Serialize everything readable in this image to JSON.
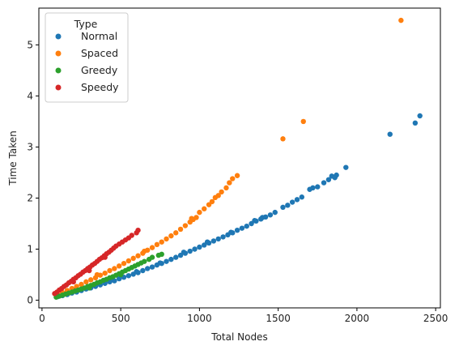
{
  "chart_data": {
    "type": "scatter",
    "title": "",
    "xlabel": "Total Nodes",
    "ylabel": "Time Taken",
    "xlim": [
      -20,
      2530
    ],
    "ylim": [
      -0.15,
      5.72
    ],
    "x_ticks": [
      0,
      500,
      1000,
      1500,
      2000,
      2500
    ],
    "y_ticks": [
      0,
      1,
      2,
      3,
      4,
      5
    ],
    "grid": false,
    "legend": {
      "title": "Type",
      "placement": "top-left"
    },
    "series": [
      {
        "name": "Normal",
        "color": "#1f77b4",
        "points": [
          [
            100,
            0.07
          ],
          [
            130,
            0.09
          ],
          [
            160,
            0.11
          ],
          [
            190,
            0.14
          ],
          [
            220,
            0.16
          ],
          [
            250,
            0.19
          ],
          [
            280,
            0.22
          ],
          [
            310,
            0.24
          ],
          [
            340,
            0.27
          ],
          [
            370,
            0.3
          ],
          [
            400,
            0.33
          ],
          [
            430,
            0.36
          ],
          [
            460,
            0.38
          ],
          [
            490,
            0.42
          ],
          [
            520,
            0.45
          ],
          [
            550,
            0.48
          ],
          [
            580,
            0.51
          ],
          [
            610,
            0.54
          ],
          [
            640,
            0.58
          ],
          [
            670,
            0.62
          ],
          [
            700,
            0.65
          ],
          [
            730,
            0.69
          ],
          [
            760,
            0.72
          ],
          [
            790,
            0.76
          ],
          [
            820,
            0.8
          ],
          [
            850,
            0.84
          ],
          [
            880,
            0.88
          ],
          [
            910,
            0.92
          ],
          [
            940,
            0.96
          ],
          [
            970,
            1.0
          ],
          [
            1000,
            1.04
          ],
          [
            1030,
            1.08
          ],
          [
            1060,
            1.12
          ],
          [
            1090,
            1.16
          ],
          [
            1120,
            1.2
          ],
          [
            1150,
            1.24
          ],
          [
            1180,
            1.28
          ],
          [
            1210,
            1.32
          ],
          [
            1240,
            1.37
          ],
          [
            1270,
            1.41
          ],
          [
            1300,
            1.45
          ],
          [
            1330,
            1.5
          ],
          [
            1360,
            1.55
          ],
          [
            1390,
            1.59
          ],
          [
            1420,
            1.63
          ],
          [
            1450,
            1.67
          ],
          [
            1480,
            1.72
          ],
          [
            1530,
            1.82
          ],
          [
            1560,
            1.86
          ],
          [
            1590,
            1.92
          ],
          [
            1620,
            1.97
          ],
          [
            1650,
            2.02
          ],
          [
            1700,
            2.17
          ],
          [
            1720,
            2.2
          ],
          [
            1750,
            2.22
          ],
          [
            1790,
            2.3
          ],
          [
            1820,
            2.36
          ],
          [
            1840,
            2.43
          ],
          [
            1860,
            2.4
          ],
          [
            1870,
            2.45
          ],
          [
            1930,
            2.6
          ],
          [
            2210,
            3.25
          ],
          [
            2370,
            3.47
          ],
          [
            2400,
            3.61
          ],
          [
            200,
            0.2
          ],
          [
            300,
            0.26
          ],
          [
            450,
            0.4
          ],
          [
            600,
            0.56
          ],
          [
            750,
            0.73
          ],
          [
            900,
            0.94
          ],
          [
            1050,
            1.14
          ],
          [
            1200,
            1.33
          ],
          [
            1350,
            1.56
          ],
          [
            1400,
            1.62
          ]
        ]
      },
      {
        "name": "Spaced",
        "color": "#ff7f0e",
        "points": [
          [
            100,
            0.11
          ],
          [
            130,
            0.15
          ],
          [
            160,
            0.19
          ],
          [
            190,
            0.23
          ],
          [
            220,
            0.27
          ],
          [
            250,
            0.31
          ],
          [
            280,
            0.36
          ],
          [
            310,
            0.4
          ],
          [
            340,
            0.44
          ],
          [
            370,
            0.49
          ],
          [
            400,
            0.53
          ],
          [
            430,
            0.58
          ],
          [
            460,
            0.62
          ],
          [
            490,
            0.67
          ],
          [
            520,
            0.72
          ],
          [
            550,
            0.77
          ],
          [
            580,
            0.82
          ],
          [
            610,
            0.87
          ],
          [
            640,
            0.92
          ],
          [
            670,
            0.98
          ],
          [
            700,
            1.03
          ],
          [
            730,
            1.09
          ],
          [
            760,
            1.14
          ],
          [
            790,
            1.2
          ],
          [
            820,
            1.26
          ],
          [
            850,
            1.32
          ],
          [
            880,
            1.39
          ],
          [
            910,
            1.46
          ],
          [
            940,
            1.53
          ],
          [
            960,
            1.58
          ],
          [
            980,
            1.62
          ],
          [
            1000,
            1.72
          ],
          [
            1030,
            1.79
          ],
          [
            1060,
            1.87
          ],
          [
            1080,
            1.93
          ],
          [
            1100,
            2.01
          ],
          [
            1120,
            2.05
          ],
          [
            1140,
            2.12
          ],
          [
            1170,
            2.2
          ],
          [
            1190,
            2.3
          ],
          [
            1210,
            2.38
          ],
          [
            1240,
            2.44
          ],
          [
            1530,
            3.16
          ],
          [
            1660,
            3.5
          ],
          [
            2280,
            5.48
          ],
          [
            350,
            0.5
          ],
          [
            650,
            0.96
          ],
          [
            950,
            1.6
          ]
        ]
      },
      {
        "name": "Greedy",
        "color": "#2ca02c",
        "points": [
          [
            90,
            0.06
          ],
          [
            110,
            0.08
          ],
          [
            130,
            0.1
          ],
          [
            150,
            0.12
          ],
          [
            170,
            0.14
          ],
          [
            190,
            0.16
          ],
          [
            210,
            0.18
          ],
          [
            230,
            0.2
          ],
          [
            250,
            0.22
          ],
          [
            270,
            0.24
          ],
          [
            290,
            0.27
          ],
          [
            310,
            0.29
          ],
          [
            330,
            0.31
          ],
          [
            350,
            0.34
          ],
          [
            370,
            0.36
          ],
          [
            390,
            0.39
          ],
          [
            410,
            0.41
          ],
          [
            430,
            0.44
          ],
          [
            450,
            0.46
          ],
          [
            470,
            0.49
          ],
          [
            490,
            0.52
          ],
          [
            510,
            0.55
          ],
          [
            530,
            0.58
          ],
          [
            550,
            0.61
          ],
          [
            570,
            0.64
          ],
          [
            590,
            0.67
          ],
          [
            610,
            0.7
          ],
          [
            630,
            0.73
          ],
          [
            650,
            0.76
          ],
          [
            680,
            0.8
          ],
          [
            700,
            0.84
          ],
          [
            740,
            0.88
          ],
          [
            760,
            0.9
          ],
          [
            300,
            0.24
          ],
          [
            500,
            0.5
          ]
        ]
      },
      {
        "name": "Speedy",
        "color": "#d62728",
        "points": [
          [
            80,
            0.13
          ],
          [
            95,
            0.16
          ],
          [
            110,
            0.2
          ],
          [
            125,
            0.23
          ],
          [
            140,
            0.27
          ],
          [
            155,
            0.3
          ],
          [
            170,
            0.34
          ],
          [
            185,
            0.37
          ],
          [
            200,
            0.41
          ],
          [
            215,
            0.44
          ],
          [
            230,
            0.48
          ],
          [
            245,
            0.51
          ],
          [
            260,
            0.55
          ],
          [
            275,
            0.58
          ],
          [
            290,
            0.62
          ],
          [
            305,
            0.65
          ],
          [
            320,
            0.69
          ],
          [
            335,
            0.72
          ],
          [
            350,
            0.76
          ],
          [
            365,
            0.8
          ],
          [
            380,
            0.83
          ],
          [
            395,
            0.87
          ],
          [
            410,
            0.91
          ],
          [
            425,
            0.94
          ],
          [
            440,
            0.98
          ],
          [
            455,
            1.02
          ],
          [
            470,
            1.06
          ],
          [
            490,
            1.1
          ],
          [
            510,
            1.14
          ],
          [
            530,
            1.18
          ],
          [
            550,
            1.22
          ],
          [
            570,
            1.27
          ],
          [
            600,
            1.32
          ],
          [
            610,
            1.37
          ],
          [
            200,
            0.36
          ],
          [
            300,
            0.58
          ],
          [
            400,
            0.84
          ]
        ]
      }
    ]
  }
}
